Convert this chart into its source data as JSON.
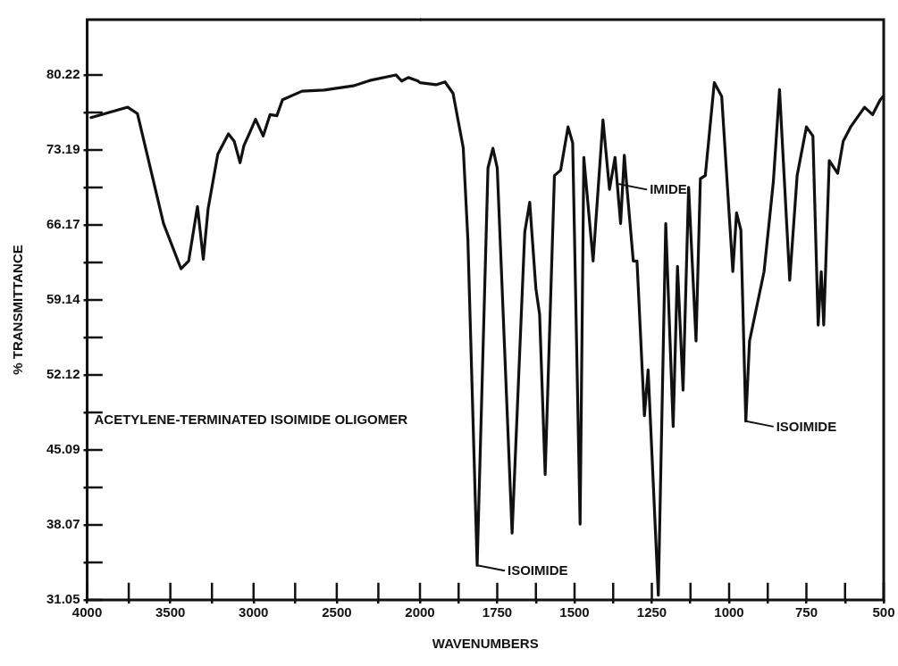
{
  "chart_data": [
    {
      "type": "line",
      "ylabel": "% TRANSMITTANCE",
      "xlim": [
        4000,
        2000
      ],
      "xticks": [
        4000,
        {
          "value": 3750,
          "label": null
        },
        3500,
        {
          "value": 3250,
          "label": null
        },
        3000,
        {
          "value": 2750,
          "label": null
        },
        2500,
        {
          "value": 2250,
          "label": null
        },
        2000
      ],
      "ylim": [
        31.05,
        85.4
      ],
      "yticks": [
        31.05,
        {
          "value": 34.56,
          "label": null
        },
        38.07,
        {
          "value": 41.58,
          "label": null
        },
        45.09,
        {
          "value": 48.6,
          "label": null
        },
        52.12,
        {
          "value": 55.63,
          "label": null
        },
        59.14,
        {
          "value": 62.66,
          "label": null
        },
        66.17,
        {
          "value": 69.68,
          "label": null
        },
        73.19,
        {
          "value": 76.7,
          "label": null
        },
        80.22
      ],
      "legend": false,
      "marker": "none",
      "line_style": "solid",
      "annotations": [
        "ACETYLENE-TERMINATED ISOIMIDE OLIGOMER"
      ],
      "series": [
        {
          "color": "#111111",
          "x": [
            3977,
            3756,
            3698,
            3640,
            3541,
            3436,
            3390,
            3337,
            3302,
            3273,
            3215,
            3151,
            3116,
            3081,
            3058,
            3029,
            2988,
            2942,
            2901,
            2860,
            2826,
            2709,
            2576,
            2401,
            2302,
            2145,
            2110,
            2070,
            2012,
            2000
          ],
          "values": [
            76.23,
            77.2,
            76.6,
            72.8,
            66.3,
            62.07,
            62.8,
            67.9,
            62.96,
            67.7,
            72.8,
            74.7,
            74,
            72,
            73.6,
            74.6,
            76.07,
            74.5,
            76.5,
            76.4,
            77.9,
            78.7,
            78.8,
            79.2,
            79.7,
            80.22,
            79.65,
            79.98,
            79.65,
            79.5
          ]
        }
      ]
    },
    {
      "type": "line",
      "xlabel": "WAVENUMBERS",
      "xlim": [
        2000,
        500
      ],
      "xticks": [
        {
          "value": 1875,
          "label": null
        },
        1750,
        {
          "value": 1625,
          "label": null
        },
        1500,
        {
          "value": 1375,
          "label": null
        },
        1250,
        {
          "value": 1125,
          "label": null
        },
        1000,
        {
          "value": 875,
          "label": null
        },
        750,
        {
          "value": 625,
          "label": null
        },
        500
      ],
      "ylim": [
        31.05,
        85.4
      ],
      "tick_labels": "x",
      "legend": false,
      "marker": "none",
      "line_style": "solid",
      "annotations": [
        {
          "text": "ISOIMIDE",
          "x": 1815,
          "y": 34.3
        },
        {
          "text": "IMIDE",
          "x": 1355,
          "y": 70
        },
        {
          "text": "ISOIMIDE",
          "x": 946,
          "y": 47.8
        }
      ],
      "series": [
        {
          "color": "#111111",
          "x": [
            2000,
            1948,
            1919,
            1893,
            1860,
            1845,
            1815,
            1780,
            1764,
            1750,
            1702,
            1661,
            1645,
            1625,
            1613,
            1595,
            1565,
            1545,
            1521,
            1506,
            1482,
            1470,
            1440,
            1408,
            1387,
            1369,
            1351,
            1339,
            1333,
            1310,
            1298,
            1274,
            1262,
            1229,
            1205,
            1181,
            1167,
            1149,
            1131,
            1107,
            1093,
            1077,
            1048,
            1024,
            988,
            976,
            962,
            946,
            934,
            887,
            857,
            837,
            804,
            780,
            750,
            729,
            712,
            702,
            694,
            676,
            649,
            631,
            607,
            562,
            536,
            512,
            502
          ],
          "values": [
            79.5,
            79.3,
            79.57,
            78.5,
            73.4,
            64.8,
            34.3,
            71.5,
            73.35,
            71.5,
            37.3,
            65.5,
            68.3,
            60.2,
            57.8,
            42.8,
            70.8,
            71.3,
            75.35,
            73.85,
            38.15,
            72.5,
            62.8,
            76,
            69.5,
            72.5,
            66.3,
            72.7,
            70.5,
            62.8,
            62.8,
            48.3,
            52.6,
            31.5,
            66.3,
            47.3,
            62.3,
            50.7,
            69.7,
            55.3,
            70.5,
            70.8,
            79.5,
            78.2,
            61.8,
            67.3,
            65.7,
            47.8,
            55.3,
            61.8,
            70.2,
            78.85,
            61,
            70.8,
            75.35,
            74.5,
            56.8,
            61.8,
            56.8,
            72.2,
            71,
            74,
            75.35,
            77.2,
            76.5,
            77.85,
            78.2
          ]
        }
      ]
    }
  ]
}
